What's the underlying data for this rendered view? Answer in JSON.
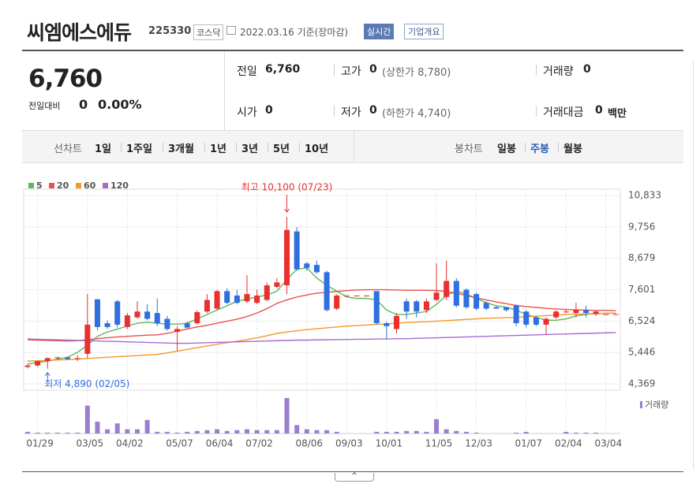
{
  "header": {
    "name": "씨엠에스에듀",
    "code": "225330",
    "market": "코스닥",
    "date": "2022.03.16 기준(장마감)",
    "realtime": "실시간",
    "company_info": "기업개요"
  },
  "price": {
    "current": "6,760",
    "change_label": "전일대비",
    "change": "0",
    "change_rate": "0.00%"
  },
  "quote": [
    [
      {
        "label": "전일",
        "value": "6,760"
      },
      {
        "label": "고가",
        "value": "0",
        "note": "(상한가 8,780)"
      },
      {
        "label": "거래량",
        "value": "0"
      }
    ],
    [
      {
        "label": "시가",
        "value": "0"
      },
      {
        "label": "저가",
        "value": "0",
        "note": "(하한가 4,740)"
      },
      {
        "label": "거래대금",
        "value": "0",
        "note": "백만"
      }
    ]
  ],
  "periods": {
    "line_label": "선차트",
    "line": [
      "1일",
      "1주일",
      "3개월",
      "1년",
      "3년",
      "5년",
      "10년"
    ],
    "candle_label": "봉차트",
    "candle": [
      "일봉",
      "주봉",
      "월봉"
    ],
    "selected": "주봉"
  },
  "chart_data": {
    "type": "candlestick",
    "categories": [
      null,
      "01/29",
      null,
      null,
      null,
      null,
      "03/05",
      null,
      null,
      null,
      "04/02",
      null,
      null,
      null,
      null,
      "05/07",
      null,
      null,
      null,
      "06/04",
      null,
      null,
      null,
      "07/02",
      null,
      null,
      null,
      null,
      "08/06",
      null,
      null,
      null,
      "09/03",
      null,
      null,
      null,
      "10/01",
      null,
      null,
      null,
      null,
      "11/05",
      null,
      null,
      null,
      "12/03",
      null,
      null,
      null,
      null,
      "01/07",
      null,
      null,
      null,
      "02/04",
      null,
      null,
      null,
      "03/04",
      null
    ],
    "open": [
      4950,
      5000,
      5150,
      5250,
      5280,
      5220,
      5400,
      7270,
      6450,
      7200,
      6320,
      6650,
      6850,
      6800,
      6600,
      6150,
      6450,
      6450,
      6850,
      6950,
      7550,
      7400,
      7200,
      7150,
      7250,
      7700,
      7750,
      9600,
      8500,
      8450,
      8200,
      6950,
      7400,
      7400,
      7400,
      7550,
      6450,
      6250,
      7200,
      7200,
      6900,
      7250,
      7350,
      7900,
      7600,
      7450,
      7150,
      7000,
      7000,
      7050,
      6850,
      6650,
      6400,
      6650,
      6850,
      6800,
      6900,
      6760,
      6760,
      6760
    ],
    "high": [
      5050,
      5150,
      5280,
      5300,
      5300,
      5350,
      7450,
      7280,
      6550,
      7250,
      6800,
      7200,
      7100,
      7300,
      6700,
      6350,
      6500,
      6900,
      7450,
      7600,
      7650,
      7600,
      8100,
      7600,
      7850,
      8000,
      10100,
      9750,
      8550,
      8600,
      8250,
      7450,
      7400,
      7400,
      7400,
      7550,
      6500,
      6800,
      7300,
      7250,
      7300,
      8500,
      8600,
      8000,
      7650,
      7500,
      7200,
      7050,
      7000,
      7100,
      6900,
      6700,
      6650,
      6900,
      6950,
      7150,
      7050,
      6900,
      6760,
      6760
    ],
    "low": [
      4900,
      4950,
      4890,
      5200,
      5200,
      5150,
      5250,
      6200,
      6250,
      6300,
      6250,
      6600,
      6550,
      6350,
      6200,
      5500,
      6250,
      6400,
      6800,
      6900,
      7100,
      7100,
      7150,
      7100,
      7200,
      7650,
      7450,
      8250,
      8250,
      8150,
      6850,
      6900,
      7400,
      7400,
      7400,
      6400,
      5900,
      6100,
      6600,
      6650,
      6800,
      7200,
      7250,
      7000,
      6950,
      6900,
      6900,
      6950,
      6850,
      6350,
      6300,
      6350,
      6050,
      6600,
      6800,
      6650,
      6650,
      6700,
      6760,
      6760
    ],
    "close": [
      5000,
      5150,
      5250,
      5280,
      5220,
      5250,
      6400,
      6320,
      6320,
      6400,
      6720,
      6850,
      6600,
      6450,
      6250,
      6250,
      6300,
      6830,
      7250,
      7550,
      7150,
      7150,
      7450,
      7400,
      7750,
      7850,
      9650,
      8300,
      8350,
      8200,
      6900,
      7400,
      7400,
      7400,
      7400,
      6450,
      6350,
      6700,
      6850,
      6850,
      7200,
      7500,
      7900,
      7050,
      7000,
      6950,
      6950,
      6950,
      6900,
      6450,
      6400,
      6400,
      6600,
      6850,
      6850,
      6900,
      6800,
      6850,
      6760,
      6760
    ],
    "up_color": "#e8312f",
    "down_color": "#2f6fe0",
    "ylim": [
      4369,
      10833
    ],
    "yticks": [
      {
        "value": 4369,
        "label": "4,369"
      },
      {
        "value": 5446,
        "label": "5,446"
      },
      {
        "value": 6524,
        "label": "6,524"
      },
      {
        "value": 7601,
        "label": "7,601"
      },
      {
        "value": 8679,
        "label": "8,679"
      },
      {
        "value": 9756,
        "label": "9,756"
      },
      {
        "value": 10833,
        "label": "10,833"
      }
    ],
    "grid": true,
    "moving_averages": [
      {
        "name": "5",
        "color": "#5cb85c",
        "values": [
          5050,
          5100,
          5150,
          5220,
          5280,
          5450,
          5700,
          6000,
          6150,
          6250,
          6350,
          6450,
          6480,
          6450,
          6420,
          6420,
          6450,
          6600,
          6750,
          6900,
          7050,
          7200,
          7280,
          7350,
          7420,
          7550,
          7950,
          8300,
          8350,
          8000,
          7750,
          7550,
          7350,
          7300,
          7300,
          7250,
          6900,
          6750,
          6750,
          6800,
          6850,
          7100,
          7400,
          7550,
          7450,
          7300,
          7150,
          7050,
          7000,
          6900,
          6750,
          6650,
          6550,
          6550,
          6600,
          6700,
          6750,
          6780,
          6790,
          6790
        ]
      },
      {
        "name": "20",
        "color": "#e8514f",
        "values": [
          5880,
          5870,
          5860,
          5850,
          5840,
          5850,
          5880,
          5920,
          5950,
          5980,
          6000,
          6020,
          6040,
          6050,
          6100,
          6180,
          6250,
          6320,
          6380,
          6450,
          6520,
          6590,
          6680,
          6800,
          6950,
          7130,
          7250,
          7350,
          7420,
          7480,
          7510,
          7540,
          7570,
          7590,
          7600,
          7600,
          7600,
          7590,
          7580,
          7580,
          7580,
          7570,
          7540,
          7480,
          7400,
          7320,
          7250,
          7180,
          7120,
          7060,
          7020,
          6990,
          6960,
          6940,
          6920,
          6910,
          6900,
          6890,
          6890,
          6880
        ]
      },
      {
        "name": "60",
        "color": "#f39a2b",
        "values": [
          5150,
          5160,
          5170,
          5190,
          5200,
          5220,
          5240,
          5260,
          5280,
          5300,
          5320,
          5340,
          5360,
          5380,
          5430,
          5490,
          5550,
          5610,
          5670,
          5730,
          5780,
          5830,
          5890,
          5950,
          6020,
          6100,
          6150,
          6190,
          6230,
          6260,
          6290,
          6320,
          6350,
          6370,
          6390,
          6410,
          6430,
          6450,
          6470,
          6490,
          6500,
          6520,
          6540,
          6560,
          6580,
          6600,
          6620,
          6630,
          6640,
          6650,
          6670,
          6690,
          6710,
          6730,
          6750,
          6760,
          6770,
          6780,
          6790,
          6800
        ]
      },
      {
        "name": "120",
        "color": "#a66bd3",
        "values": [
          5910,
          5900,
          5890,
          5880,
          5870,
          5860,
          5850,
          5840,
          5830,
          5820,
          5810,
          5800,
          5790,
          5780,
          5770,
          5760,
          5760,
          5770,
          5780,
          5790,
          5800,
          5810,
          5820,
          5830,
          5840,
          5850,
          5860,
          5870,
          5870,
          5880,
          5880,
          5890,
          5890,
          5900,
          5900,
          5910,
          5910,
          5920,
          5920,
          5930,
          5940,
          5950,
          5960,
          5970,
          5980,
          5990,
          6000,
          6010,
          6020,
          6030,
          6040,
          6050,
          6060,
          6070,
          6080,
          6090,
          6100,
          6110,
          6120,
          6130
        ]
      }
    ],
    "volume": {
      "name": "거래량",
      "color": "#9a7fd1",
      "values": [
        2,
        1,
        1,
        1,
        1,
        1,
        33,
        14,
        5,
        12,
        5,
        5,
        16,
        2,
        2,
        1,
        2,
        3,
        4,
        5,
        3,
        4,
        5,
        4,
        4,
        4,
        42,
        10,
        5,
        4,
        4,
        2,
        0,
        0,
        0,
        2,
        2,
        2,
        3,
        3,
        2,
        17,
        5,
        3,
        2,
        1,
        0,
        0,
        0,
        1,
        2,
        0,
        0,
        0,
        2,
        1,
        1,
        1,
        0,
        0
      ]
    },
    "annotations": [
      {
        "text": "최고 10,100 (07/23)",
        "value": 10100,
        "kind": "high",
        "color": "#e8312f"
      },
      {
        "text": "최저 4,890 (02/05)",
        "value": 4890,
        "kind": "low",
        "color": "#2f6fe0"
      }
    ]
  }
}
